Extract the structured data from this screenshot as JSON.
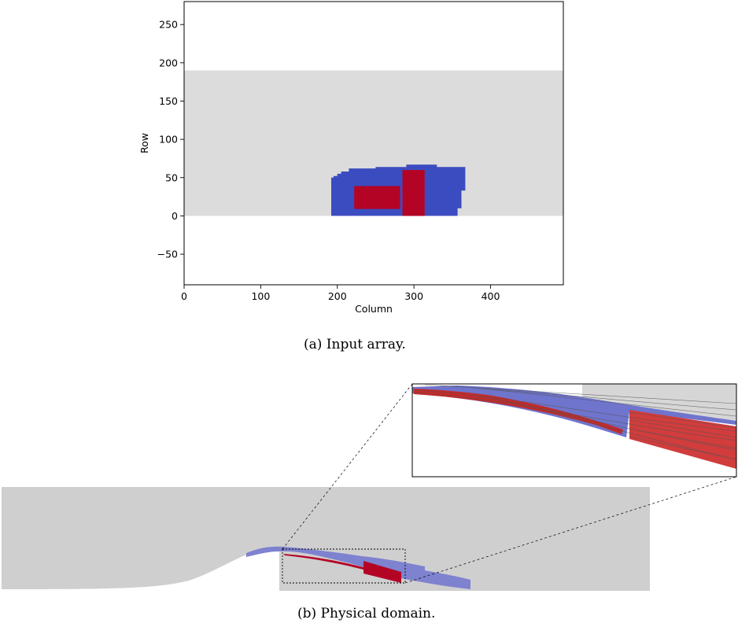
{
  "captions": {
    "a": "(a) Input array.",
    "b": "(b) Physical domain."
  },
  "chart_data": [
    {
      "type": "heatmap",
      "title": "",
      "xlabel": "Column",
      "ylabel": "Row",
      "xlim": [
        0,
        495
      ],
      "ylim": [
        -90,
        280
      ],
      "xticks": [
        0,
        100,
        200,
        300,
        400
      ],
      "xtick_labels": [
        "0",
        "100",
        "200",
        "300",
        "400"
      ],
      "yticks": [
        -50,
        0,
        50,
        100,
        150,
        200,
        250
      ],
      "ytick_labels": [
        "−50",
        "0",
        "50",
        "100",
        "150",
        "200",
        "250"
      ],
      "grid": false,
      "colors": {
        "background": "#dcdcdc",
        "blue": "#3b4cc0",
        "red": "#b40426"
      },
      "regions": [
        {
          "kind": "background",
          "color": "#dcdcdc",
          "x": [
            0,
            495
          ],
          "y": [
            0,
            190
          ]
        },
        {
          "kind": "blue",
          "color": "#3b4cc0",
          "outline": [
            [
              192,
              0
            ],
            [
              192,
              50
            ],
            [
              195,
              50
            ],
            [
              195,
              52
            ],
            [
              200,
              52
            ],
            [
              200,
              55
            ],
            [
              205,
              55
            ],
            [
              205,
              58
            ],
            [
              215,
              58
            ],
            [
              215,
              62
            ],
            [
              250,
              62
            ],
            [
              250,
              64
            ],
            [
              290,
              64
            ],
            [
              290,
              67
            ],
            [
              330,
              67
            ],
            [
              330,
              64
            ],
            [
              367,
              64
            ],
            [
              367,
              33
            ],
            [
              362,
              33
            ],
            [
              362,
              10
            ],
            [
              357,
              10
            ],
            [
              357,
              0
            ]
          ]
        },
        {
          "kind": "red",
          "color": "#b40426",
          "x": [
            222,
            282
          ],
          "y": [
            9,
            39
          ]
        },
        {
          "kind": "red",
          "color": "#b40426",
          "x": [
            285,
            314
          ],
          "y": [
            0,
            60
          ]
        }
      ]
    }
  ]
}
